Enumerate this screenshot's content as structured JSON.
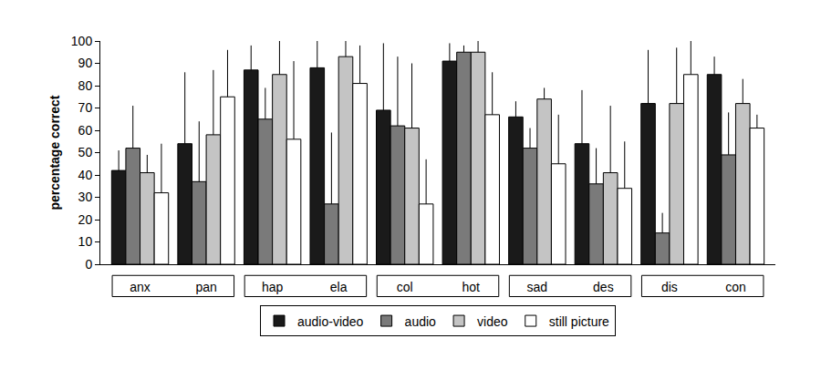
{
  "chart_data": {
    "type": "bar",
    "y_label": "percentage correct",
    "categories": [
      "anx",
      "pan",
      "hap",
      "ela",
      "col",
      "hot",
      "sad",
      "des",
      "dis",
      "con"
    ],
    "series": [
      {
        "name": "audio-video",
        "color": "#1a1a1a",
        "values": [
          42,
          54,
          87,
          88,
          69,
          91,
          66,
          54,
          72,
          85
        ],
        "errors": [
          9,
          32,
          11,
          13,
          30,
          8,
          7,
          24,
          24,
          8
        ]
      },
      {
        "name": "audio",
        "color": "#7a7a7a",
        "values": [
          52,
          37,
          65,
          27,
          62,
          95,
          52,
          36,
          14,
          49
        ],
        "errors": [
          19,
          27,
          14,
          32,
          31,
          3,
          9,
          16,
          9,
          19
        ]
      },
      {
        "name": "video",
        "color": "#c4c4c4",
        "values": [
          41,
          58,
          85,
          93,
          61,
          95,
          74,
          41,
          72,
          72
        ],
        "errors": [
          8,
          29,
          15,
          8,
          29,
          5,
          5,
          30,
          25,
          11
        ]
      },
      {
        "name": "still picture",
        "color": "#ffffff",
        "values": [
          32,
          75,
          56,
          81,
          27,
          67,
          45,
          34,
          85,
          61
        ],
        "errors": [
          22,
          21,
          35,
          17,
          20,
          19,
          22,
          21,
          16,
          6
        ]
      }
    ],
    "ylim": [
      0,
      100
    ],
    "yticks": [
      0,
      10,
      20,
      30,
      40,
      50,
      60,
      70,
      80,
      90,
      100
    ],
    "grid": false,
    "legend": "bottom"
  }
}
